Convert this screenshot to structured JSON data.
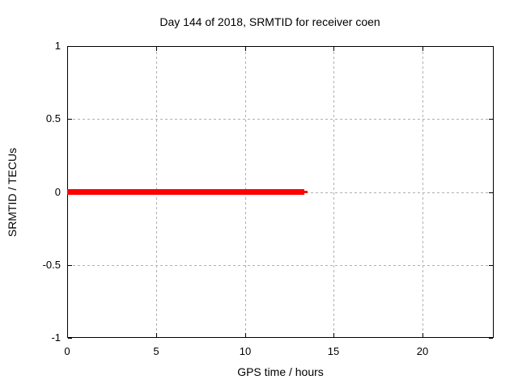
{
  "chart_data": {
    "type": "line",
    "title": "Day 144 of 2018, SRMTID for receiver coen",
    "xlabel": "GPS time / hours",
    "ylabel": "SRMTID / TECUs",
    "xlim": [
      0,
      24
    ],
    "ylim": [
      -1,
      1
    ],
    "xticks": [
      0,
      5,
      10,
      15,
      20
    ],
    "yticks": [
      1,
      0.5,
      0,
      -0.5,
      -1
    ],
    "grid": true,
    "grid_style": "dashed",
    "legend_position": "none",
    "series": [
      {
        "name": "srmtid-line",
        "color": "#ff0000",
        "line_width": 7,
        "x": [
          0,
          13.35
        ],
        "y": [
          0,
          0
        ]
      },
      {
        "name": "srmtid-line-tip",
        "color": "#ff0000",
        "line_width": 3,
        "x": [
          13.35,
          13.55
        ],
        "y": [
          0,
          0
        ]
      }
    ]
  },
  "colors": {
    "background": "#ffffff",
    "axis": "#000000",
    "grid": "#b0b0b0",
    "text": "#000000",
    "line": "#ff0000"
  }
}
